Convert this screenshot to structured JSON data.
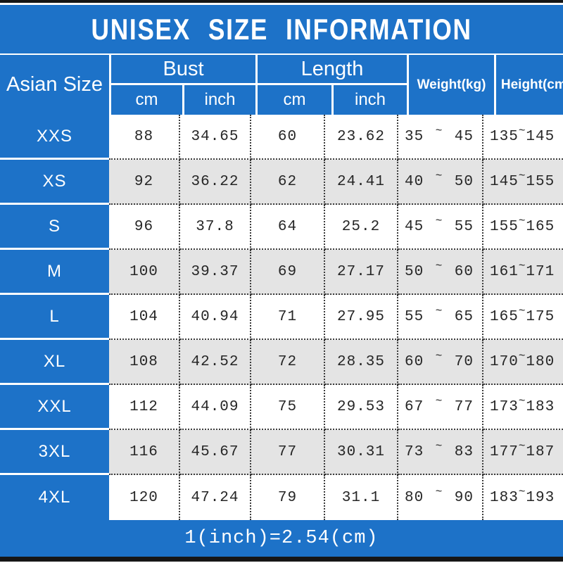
{
  "title": "UNISEX SIZE INFORMATION",
  "footer_note": "1(inch)=2.54(cm)",
  "colors": {
    "accent_blue": "#1d72c8",
    "bar_black": "#161616",
    "row_alt_gray": "#e4e4e4",
    "row_white": "#ffffff",
    "dotted_border": "#3c3c3c",
    "text_dark": "#262626",
    "text_white": "#ffffff"
  },
  "table": {
    "corner_header": "Asian Size",
    "groups": [
      {
        "label": "Bust",
        "sub": [
          "cm",
          "inch"
        ]
      },
      {
        "label": "Length",
        "sub": [
          "cm",
          "inch"
        ]
      }
    ],
    "single_headers": [
      "Weight(kg)",
      "Height(cm)"
    ],
    "range_separator": "~",
    "rows": [
      {
        "size": "XXS",
        "bust_cm": "88",
        "bust_inch": "34.65",
        "length_cm": "60",
        "length_inch": "23.62",
        "weight_min": "35",
        "weight_max": "45",
        "height_min": "135",
        "height_max": "145"
      },
      {
        "size": "XS",
        "bust_cm": "92",
        "bust_inch": "36.22",
        "length_cm": "62",
        "length_inch": "24.41",
        "weight_min": "40",
        "weight_max": "50",
        "height_min": "145",
        "height_max": "155"
      },
      {
        "size": "S",
        "bust_cm": "96",
        "bust_inch": "37.8",
        "length_cm": "64",
        "length_inch": "25.2",
        "weight_min": "45",
        "weight_max": "55",
        "height_min": "155",
        "height_max": "165"
      },
      {
        "size": "M",
        "bust_cm": "100",
        "bust_inch": "39.37",
        "length_cm": "69",
        "length_inch": "27.17",
        "weight_min": "50",
        "weight_max": "60",
        "height_min": "161",
        "height_max": "171"
      },
      {
        "size": "L",
        "bust_cm": "104",
        "bust_inch": "40.94",
        "length_cm": "71",
        "length_inch": "27.95",
        "weight_min": "55",
        "weight_max": "65",
        "height_min": "165",
        "height_max": "175"
      },
      {
        "size": "XL",
        "bust_cm": "108",
        "bust_inch": "42.52",
        "length_cm": "72",
        "length_inch": "28.35",
        "weight_min": "60",
        "weight_max": "70",
        "height_min": "170",
        "height_max": "180"
      },
      {
        "size": "XXL",
        "bust_cm": "112",
        "bust_inch": "44.09",
        "length_cm": "75",
        "length_inch": "29.53",
        "weight_min": "67",
        "weight_max": "77",
        "height_min": "173",
        "height_max": "183"
      },
      {
        "size": "3XL",
        "bust_cm": "116",
        "bust_inch": "45.67",
        "length_cm": "77",
        "length_inch": "30.31",
        "weight_min": "73",
        "weight_max": "83",
        "height_min": "177",
        "height_max": "187"
      },
      {
        "size": "4XL",
        "bust_cm": "120",
        "bust_inch": "47.24",
        "length_cm": "79",
        "length_inch": "31.1",
        "weight_min": "80",
        "weight_max": "90",
        "height_min": "183",
        "height_max": "193"
      }
    ]
  },
  "chart_data": {
    "type": "table",
    "title": "UNISEX SIZE INFORMATION",
    "columns": [
      "Asian Size",
      "Bust cm",
      "Bust inch",
      "Length cm",
      "Length inch",
      "Weight(kg)",
      "Height(cm)"
    ],
    "rows": [
      [
        "XXS",
        "88",
        "34.65",
        "60",
        "23.62",
        "35~45",
        "135~145"
      ],
      [
        "XS",
        "92",
        "36.22",
        "62",
        "24.41",
        "40~50",
        "145~155"
      ],
      [
        "S",
        "96",
        "37.8",
        "64",
        "25.2",
        "45~55",
        "155~165"
      ],
      [
        "M",
        "100",
        "39.37",
        "69",
        "27.17",
        "50~60",
        "161~171"
      ],
      [
        "L",
        "104",
        "40.94",
        "71",
        "27.95",
        "55~65",
        "165~175"
      ],
      [
        "XL",
        "108",
        "42.52",
        "72",
        "28.35",
        "60~70",
        "170~180"
      ],
      [
        "XXL",
        "112",
        "44.09",
        "75",
        "29.53",
        "67~77",
        "173~183"
      ],
      [
        "3XL",
        "116",
        "45.67",
        "77",
        "30.31",
        "73~83",
        "177~187"
      ],
      [
        "4XL",
        "120",
        "47.24",
        "79",
        "31.1",
        "80~90",
        "183~193"
      ]
    ],
    "footnote": "1(inch)=2.54(cm)"
  }
}
